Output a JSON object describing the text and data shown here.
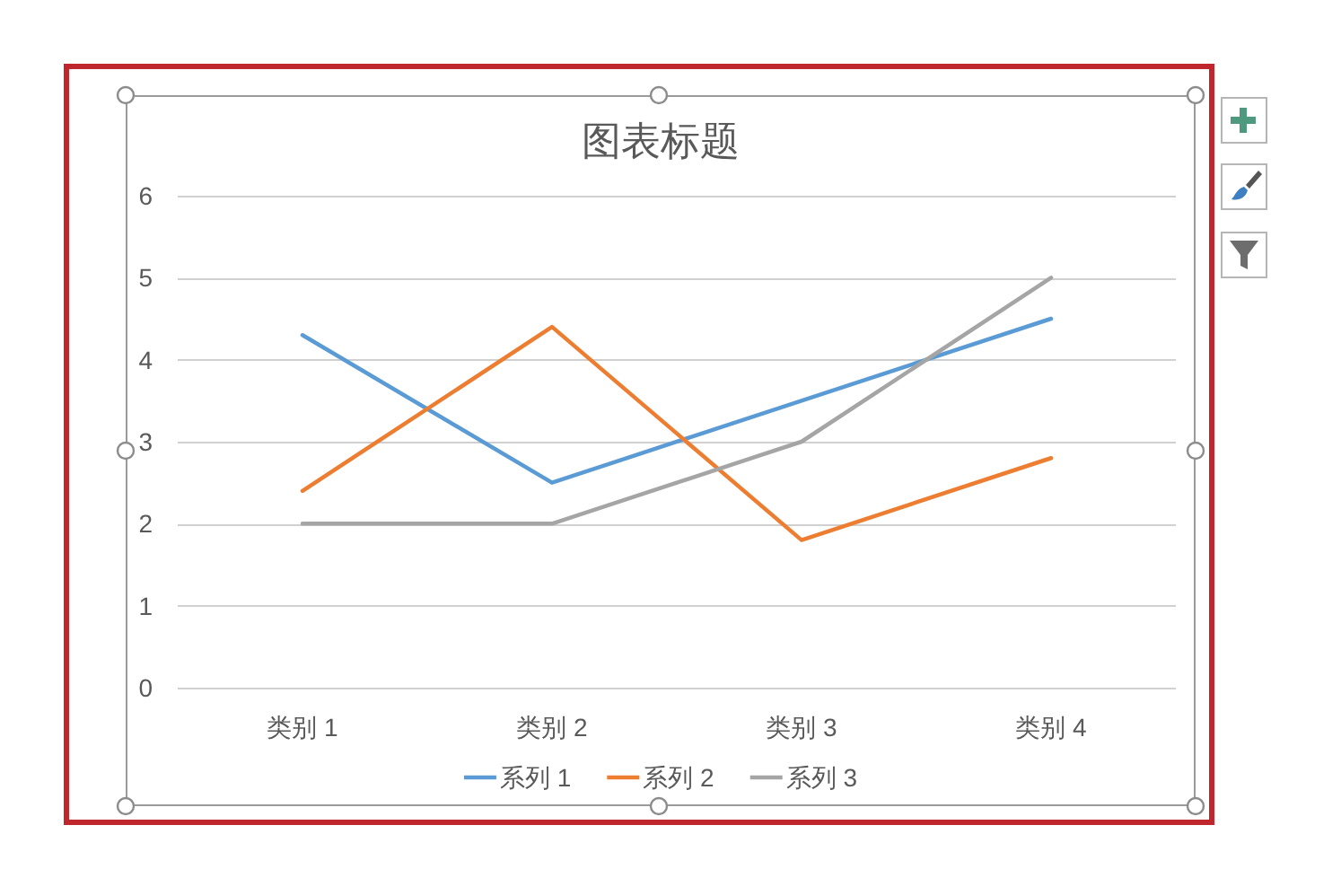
{
  "chart_data": {
    "type": "line",
    "title": "图表标题",
    "categories": [
      "类别 1",
      "类别 2",
      "类别 3",
      "类别 4"
    ],
    "series": [
      {
        "name": "系列 1",
        "color": "#5b9bd5",
        "values": [
          4.3,
          2.5,
          3.5,
          4.5
        ]
      },
      {
        "name": "系列 2",
        "color": "#ed7d31",
        "values": [
          2.4,
          4.4,
          1.8,
          2.8
        ]
      },
      {
        "name": "系列 3",
        "color": "#a5a5a5",
        "values": [
          2,
          2,
          3,
          5
        ]
      }
    ],
    "ylim": [
      0,
      6
    ],
    "yticks": [
      0,
      1,
      2,
      3,
      4,
      5,
      6
    ],
    "grid": "y",
    "legend": "bottom",
    "line_style": "solid"
  }
}
